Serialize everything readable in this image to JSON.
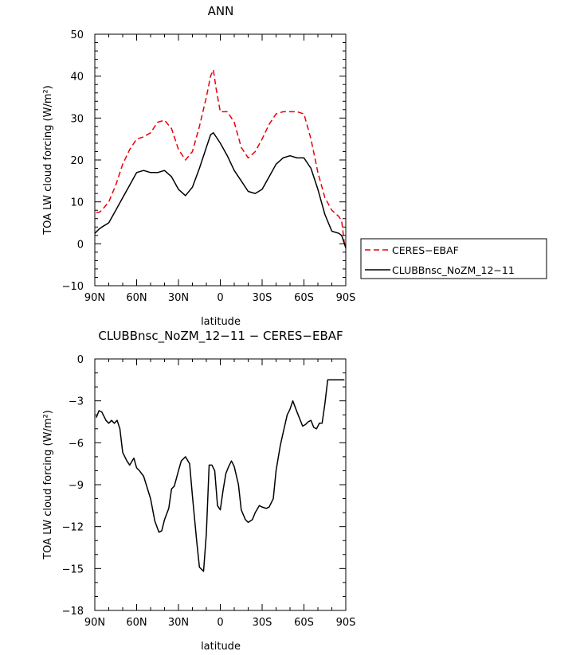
{
  "chart_data": [
    {
      "type": "line",
      "title": "ANN",
      "xlabel": "latitude",
      "ylabel": "TOA LW cloud forcing (W/m²)",
      "xlim": [
        -90,
        90
      ],
      "ylim": [
        -10,
        50
      ],
      "x_tick_labels": [
        "90N",
        "60N",
        "30N",
        "0",
        "30S",
        "60S",
        "90S"
      ],
      "y_tick_labels": [
        "50",
        "40",
        "30",
        "20",
        "10",
        "0",
        "−10"
      ],
      "legend": "right",
      "series": [
        {
          "name": "CERES−EBAF",
          "color": "#e8000b",
          "style": "dashed",
          "x": [
            -89,
            -87,
            -85,
            -80,
            -75,
            -70,
            -65,
            -60,
            -55,
            -50,
            -45,
            -40,
            -35,
            -30,
            -25,
            -20,
            -15,
            -10,
            -7,
            -5,
            -3,
            0,
            5,
            10,
            15,
            20,
            25,
            30,
            35,
            40,
            45,
            50,
            55,
            60,
            65,
            70,
            75,
            80,
            85,
            87,
            89
          ],
          "y": [
            7.5,
            7.5,
            8,
            10,
            14,
            19,
            22.5,
            25,
            25.5,
            26.5,
            29,
            29.5,
            27.5,
            22.5,
            20,
            22,
            28,
            35,
            40,
            41.5,
            37,
            31.5,
            31.5,
            29,
            23,
            20.5,
            22,
            25,
            28.5,
            31,
            31.5,
            31.5,
            31.5,
            31,
            25,
            17,
            11,
            8,
            6.5,
            5.5,
            0
          ]
        },
        {
          "name": "CLUBBnsc_NoZM_12−11",
          "color": "#000000",
          "style": "solid",
          "x": [
            -90,
            -87,
            -85,
            -80,
            -75,
            -70,
            -65,
            -60,
            -55,
            -50,
            -45,
            -40,
            -35,
            -30,
            -25,
            -20,
            -15,
            -10,
            -7,
            -5,
            -3,
            0,
            5,
            10,
            15,
            20,
            25,
            30,
            35,
            40,
            45,
            50,
            55,
            60,
            65,
            70,
            75,
            80,
            85,
            87,
            89,
            90
          ],
          "y": [
            2.5,
            3.5,
            4,
            5,
            8,
            11,
            14,
            17,
            17.5,
            17,
            17,
            17.5,
            16,
            13,
            11.5,
            13.5,
            18,
            23,
            26,
            26.5,
            25.5,
            24,
            21,
            17.5,
            15,
            12.5,
            12,
            13,
            16,
            19,
            20.5,
            21,
            20.5,
            20.5,
            18,
            13,
            7,
            3,
            2.5,
            2,
            0,
            -1
          ]
        }
      ]
    },
    {
      "type": "line",
      "title": "CLUBBnsc_NoZM_12−11 − CERES−EBAF",
      "xlabel": "latitude",
      "ylabel": "TOA LW cloud forcing (W/m²)",
      "xlim": [
        -90,
        90
      ],
      "ylim": [
        -18,
        0
      ],
      "x_tick_labels": [
        "90N",
        "60N",
        "30N",
        "0",
        "30S",
        "60S",
        "90S"
      ],
      "y_tick_labels": [
        "0",
        "−3",
        "−6",
        "−9",
        "−12",
        "−15",
        "−18"
      ],
      "series": [
        {
          "color": "#000000",
          "style": "solid",
          "x": [
            -89,
            -87,
            -85,
            -82,
            -80,
            -78,
            -76,
            -74,
            -72,
            -70,
            -67,
            -65,
            -62,
            -60,
            -58,
            -55,
            -50,
            -47,
            -44,
            -42,
            -40,
            -37,
            -35,
            -33,
            -30,
            -28,
            -25,
            -22,
            -20,
            -17,
            -15,
            -12,
            -10,
            -8,
            -6,
            -4,
            -2,
            0,
            2,
            4,
            6,
            8,
            10,
            13,
            15,
            18,
            20,
            23,
            25,
            28,
            30,
            33,
            35,
            38,
            40,
            43,
            45,
            48,
            50,
            52,
            55,
            57,
            59,
            61,
            63,
            65,
            67,
            69,
            71,
            73,
            75,
            77,
            79,
            81,
            83,
            85,
            87,
            88,
            89
          ],
          "y": [
            -4.2,
            -3.7,
            -3.8,
            -4.4,
            -4.6,
            -4.4,
            -4.6,
            -4.4,
            -5.0,
            -6.7,
            -7.3,
            -7.6,
            -7.1,
            -7.8,
            -8.0,
            -8.4,
            -10.0,
            -11.6,
            -12.4,
            -12.3,
            -11.5,
            -10.7,
            -9.3,
            -9.1,
            -8.0,
            -7.3,
            -7.0,
            -7.5,
            -9.8,
            -13.0,
            -14.9,
            -15.2,
            -12.5,
            -7.6,
            -7.6,
            -8.0,
            -10.5,
            -10.8,
            -9.4,
            -8.2,
            -7.7,
            -7.3,
            -7.7,
            -9.0,
            -10.8,
            -11.5,
            -11.7,
            -11.5,
            -11.0,
            -10.5,
            -10.6,
            -10.7,
            -10.6,
            -10.0,
            -8.0,
            -6.2,
            -5.3,
            -4.0,
            -3.6,
            -3.0,
            -3.8,
            -4.3,
            -4.8,
            -4.7,
            -4.5,
            -4.4,
            -4.9,
            -5.0,
            -4.6,
            -4.6,
            -3.2,
            -1.5,
            -1.5,
            -1.5,
            -1.5,
            -1.5,
            -1.5,
            -1.5,
            -1.5
          ]
        }
      ]
    }
  ]
}
